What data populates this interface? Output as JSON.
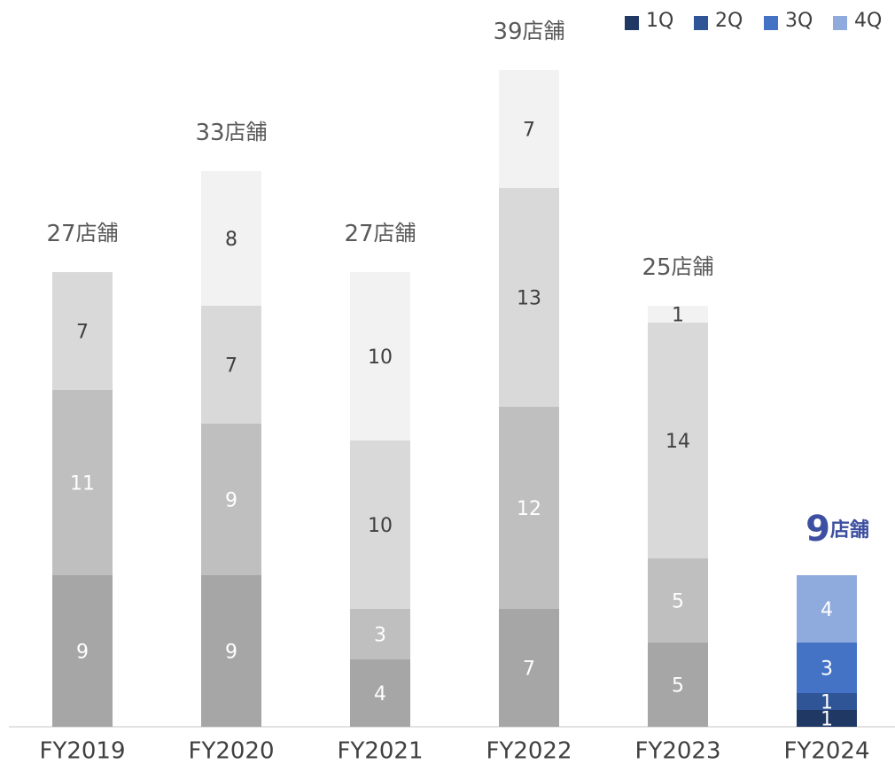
{
  "chart_data": {
    "type": "stacked_bar",
    "categories": [
      "FY2019",
      "FY2020",
      "FY2021",
      "FY2022",
      "FY2023",
      "FY2024"
    ],
    "series": [
      {
        "name": "1Q",
        "color": "#1f3864",
        "colors": [
          "#a6a6a6",
          "#a6a6a6",
          "#a6a6a6",
          "#a6a6a6",
          "#a6a6a6",
          "#1f3864"
        ],
        "values": [
          9,
          9,
          4,
          7,
          5,
          1
        ]
      },
      {
        "name": "2Q",
        "color": "#2f5597",
        "colors": [
          "#bfbfbf",
          "#bfbfbf",
          "#bfbfbf",
          "#bfbfbf",
          "#bfbfbf",
          "#2f5597"
        ],
        "values": [
          11,
          9,
          3,
          12,
          5,
          1
        ]
      },
      {
        "name": "3Q",
        "color": "#4472c4",
        "colors": [
          "#d9d9d9",
          "#d9d9d9",
          "#d9d9d9",
          "#d9d9d9",
          "#d9d9d9",
          "#4472c4"
        ],
        "values": [
          7,
          7,
          10,
          13,
          14,
          3
        ]
      },
      {
        "name": "4Q",
        "color": "#8faadc",
        "colors": [
          null,
          "#f2f2f2",
          "#f2f2f2",
          "#f2f2f2",
          "#f2f2f2",
          "#8faadc"
        ],
        "values": [
          null,
          8,
          10,
          7,
          1,
          4
        ]
      }
    ],
    "totals": [
      27,
      33,
      27,
      39,
      25,
      9
    ],
    "total_unit": "店舗",
    "highlight_index": 5,
    "highlight_color": "#3d4fa0",
    "ylim": [
      0,
      40
    ],
    "legend": "top-right"
  }
}
